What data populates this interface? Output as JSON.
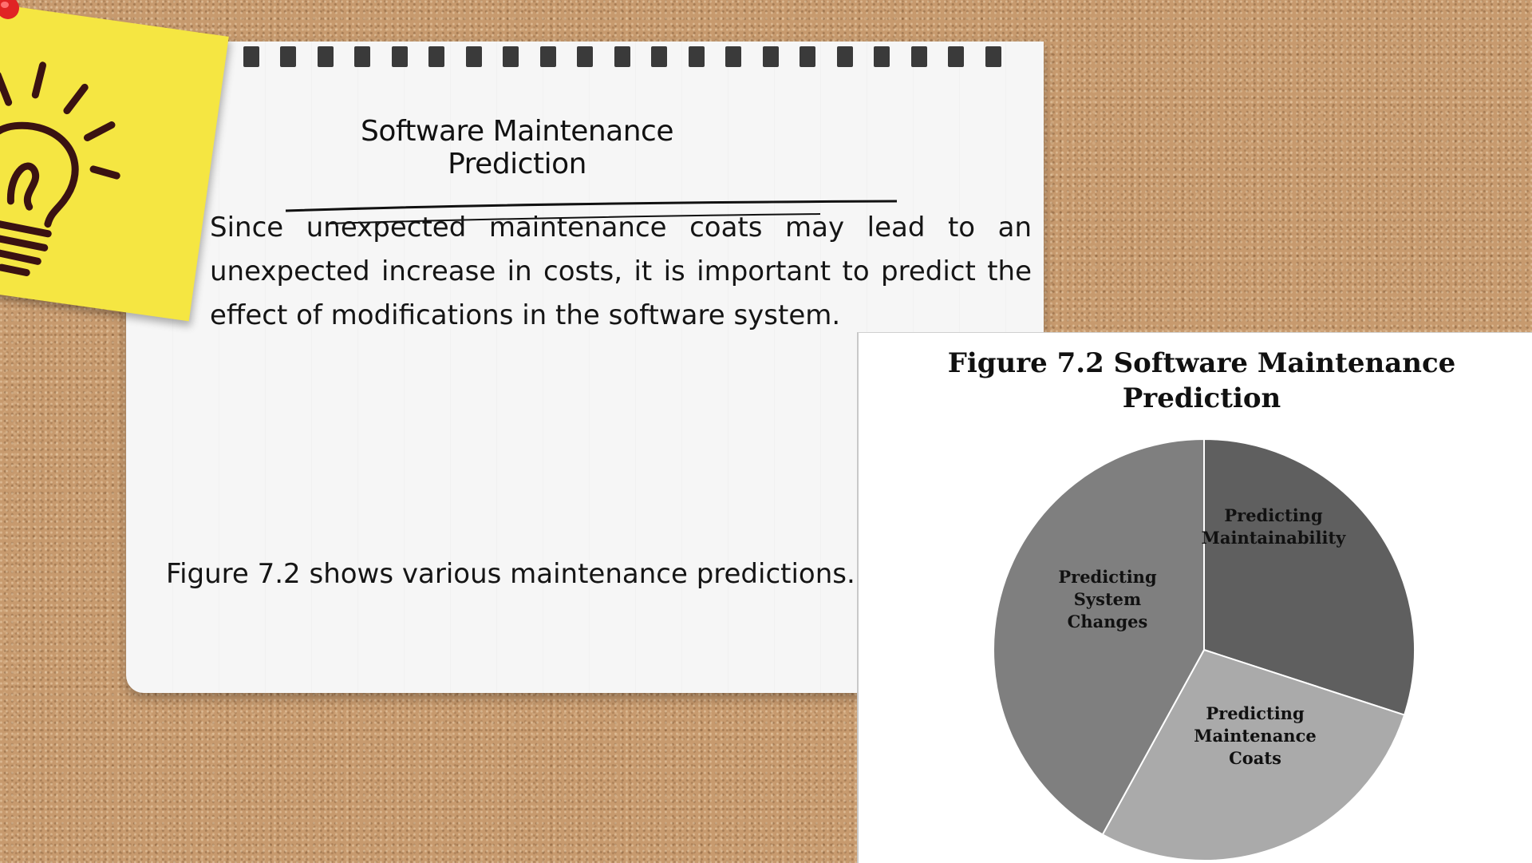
{
  "note": {
    "title": "Software Maintenance Prediction",
    "paragraph": "Since unexpected maintenance coats may lead to an unexpected increase in costs, it is important to predict the effect of modifications in the software system.",
    "figure_reference": "Figure 7.2 shows various maintenance predictions."
  },
  "icons": {
    "sticky_note": "lightbulb-icon",
    "pin": "push-pin-icon"
  },
  "colors": {
    "sticky": "#f5e642",
    "paper": "#f6f6f6",
    "cork": "#c79a6e"
  },
  "chart_data": {
    "type": "pie",
    "title_lines": [
      "Figure 7.2 Software Maintenance",
      "Prediction"
    ],
    "slices": [
      {
        "label_lines": [
          "Predicting",
          "Maintainability"
        ],
        "value": 30,
        "color": "#5f5f5f"
      },
      {
        "label_lines": [
          "Predicting",
          "Maintenance",
          "Coats"
        ],
        "value": 28,
        "color": "#aaaaaa"
      },
      {
        "label_lines": [
          "Predicting",
          "System",
          "Changes"
        ],
        "value": 42,
        "color": "#7f7f7f"
      }
    ],
    "start_angle": "12 o'clock",
    "direction": "clockwise",
    "legend": "none"
  }
}
